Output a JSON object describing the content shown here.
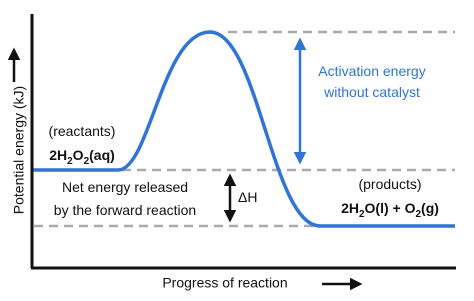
{
  "axes": {
    "y_label": "Potential energy (kJ)",
    "x_label": "Progress of reaction"
  },
  "labels": {
    "reactants": "(reactants)",
    "reactant_formula": [
      "2H",
      "2",
      "O",
      "2",
      "(aq)"
    ],
    "products": "(products)",
    "product_formula": [
      "2H",
      "2",
      "O(l) + O",
      "2",
      "(g)"
    ],
    "activation": [
      "Activation energy",
      "without catalyst"
    ],
    "net_energy": [
      "Net energy released",
      "by the forward reaction"
    ],
    "delta_h": "ΔH"
  }
}
